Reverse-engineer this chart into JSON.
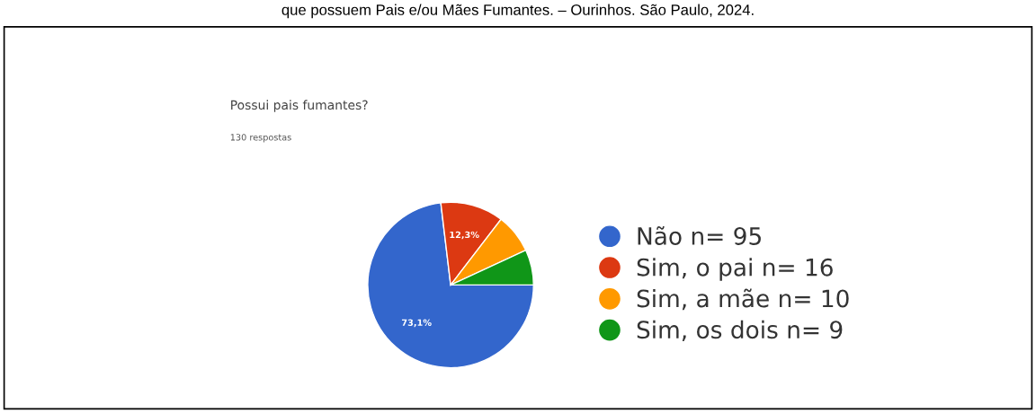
{
  "chart_data": {
    "type": "pie",
    "title": "Possui pais fumantes?",
    "subtitle": "130 respostas",
    "categories": [
      "Não n= 95",
      "Sim, o pai n= 16",
      "Sim, a mãe n= 10",
      "Sim, os dois n= 9"
    ],
    "values": [
      73.1,
      12.3,
      7.7,
      6.9
    ],
    "colors": [
      "#3366cc",
      "#dc3912",
      "#ff9900",
      "#109618"
    ],
    "value_labels": [
      "73,1%",
      "12,3%",
      null,
      null
    ],
    "legend": "right",
    "annotations": [
      "que possuem Pais e/ou Mães Fumantes. – Ourinhos. São Paulo, 2024."
    ]
  }
}
